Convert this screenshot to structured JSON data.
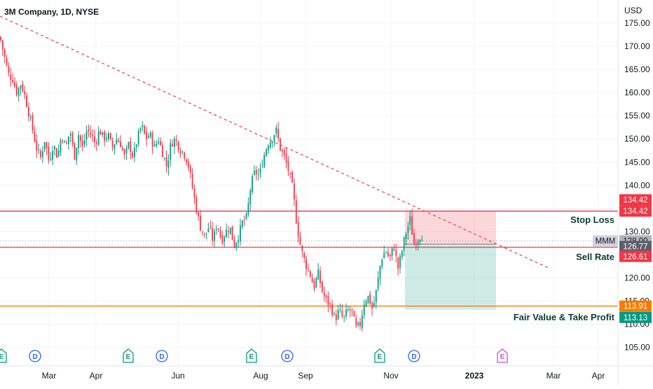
{
  "header": {
    "title": "3M Company, 1D, NYSE",
    "currency": "USD"
  },
  "chart_data": {
    "type": "candlestick",
    "symbol": "MMM",
    "ylim": [
      101,
      180
    ],
    "y_ticks": [
      105,
      110,
      115,
      120,
      125,
      130,
      135,
      140,
      145,
      150,
      155,
      160,
      165,
      170,
      175
    ],
    "y_tick_labels": [
      "105.00",
      "110.00",
      "115.00",
      "120.00",
      "125.00",
      "130.00",
      "135.00",
      "140.00",
      "145.00",
      "150.00",
      "155.00",
      "160.00",
      "165.00",
      "170.00",
      "175.00"
    ],
    "x_range": [
      0,
      880
    ],
    "x_ticks": [
      {
        "label": "Mar",
        "x": 70
      },
      {
        "label": "Apr",
        "x": 137
      },
      {
        "label": "Jun",
        "x": 254
      },
      {
        "label": "Aug",
        "x": 372
      },
      {
        "label": "Sep",
        "x": 436
      },
      {
        "label": "Nov",
        "x": 558
      },
      {
        "label": "2023",
        "x": 677,
        "bold": true
      },
      {
        "label": "Mar",
        "x": 790
      },
      {
        "label": "Apr",
        "x": 854
      }
    ],
    "anchors": [
      [
        0,
        172
      ],
      [
        6,
        168
      ],
      [
        12,
        164
      ],
      [
        18,
        163
      ],
      [
        24,
        160
      ],
      [
        30,
        162
      ],
      [
        36,
        159
      ],
      [
        42,
        155
      ],
      [
        48,
        151
      ],
      [
        52,
        148
      ],
      [
        58,
        146
      ],
      [
        64,
        150
      ],
      [
        70,
        145
      ],
      [
        76,
        149
      ],
      [
        82,
        146
      ],
      [
        88,
        151
      ],
      [
        94,
        148
      ],
      [
        100,
        152
      ],
      [
        106,
        146
      ],
      [
        112,
        151
      ],
      [
        118,
        148
      ],
      [
        124,
        152
      ],
      [
        130,
        151
      ],
      [
        136,
        149
      ],
      [
        142,
        152
      ],
      [
        148,
        150
      ],
      [
        154,
        151
      ],
      [
        160,
        148
      ],
      [
        166,
        150
      ],
      [
        172,
        149
      ],
      [
        178,
        146
      ],
      [
        184,
        149
      ],
      [
        190,
        146
      ],
      [
        196,
        150
      ],
      [
        202,
        153
      ],
      [
        208,
        150
      ],
      [
        214,
        151
      ],
      [
        220,
        148
      ],
      [
        226,
        150
      ],
      [
        232,
        147
      ],
      [
        238,
        144
      ],
      [
        244,
        149
      ],
      [
        250,
        150
      ],
      [
        256,
        148
      ],
      [
        262,
        147
      ],
      [
        268,
        145
      ],
      [
        274,
        140
      ],
      [
        280,
        135
      ],
      [
        286,
        131
      ],
      [
        292,
        129
      ],
      [
        298,
        131
      ],
      [
        304,
        128
      ],
      [
        310,
        132
      ],
      [
        316,
        128
      ],
      [
        322,
        130
      ],
      [
        328,
        131
      ],
      [
        334,
        127
      ],
      [
        340,
        129
      ],
      [
        346,
        132
      ],
      [
        352,
        133
      ],
      [
        358,
        140
      ],
      [
        364,
        143
      ],
      [
        370,
        142
      ],
      [
        376,
        146
      ],
      [
        382,
        149
      ],
      [
        388,
        150
      ],
      [
        394,
        152
      ],
      [
        400,
        148
      ],
      [
        406,
        146
      ],
      [
        412,
        143
      ],
      [
        418,
        139
      ],
      [
        424,
        131
      ],
      [
        430,
        126
      ],
      [
        436,
        123
      ],
      [
        442,
        121
      ],
      [
        448,
        118
      ],
      [
        454,
        121
      ],
      [
        460,
        117
      ],
      [
        466,
        115
      ],
      [
        472,
        114
      ],
      [
        478,
        111
      ],
      [
        484,
        113
      ],
      [
        490,
        111
      ],
      [
        496,
        113
      ],
      [
        502,
        113
      ],
      [
        508,
        109
      ],
      [
        514,
        110
      ],
      [
        520,
        115
      ],
      [
        526,
        116
      ],
      [
        532,
        113
      ],
      [
        538,
        118
      ],
      [
        544,
        124
      ],
      [
        550,
        126
      ],
      [
        556,
        124
      ],
      [
        562,
        127
      ],
      [
        568,
        122
      ],
      [
        574,
        126
      ],
      [
        578,
        129
      ],
      [
        582,
        131
      ],
      [
        586,
        133
      ],
      [
        590,
        127
      ],
      [
        594,
        128
      ],
      [
        598,
        129
      ],
      [
        604,
        129
      ]
    ],
    "trendline": {
      "x": [
        0,
        785
      ],
      "y": [
        176.5,
        122
      ]
    },
    "levels": [
      {
        "name": "Stop Loss",
        "value": 134.42,
        "color": "#f23645",
        "badge": "134.42",
        "label_y": 132.6
      },
      {
        "name": "Sell Rate",
        "value": 126.61,
        "color": "#f23645",
        "badge": "126.61",
        "label_y": 124.6
      },
      {
        "name": "Fair Value & Take Profit",
        "value": 113.91,
        "color": "#f57c00",
        "badge": "113.91",
        "label_y": 111.6
      }
    ],
    "last_price": {
      "value": 128.0,
      "label": "128.00",
      "symbol_label": "MMM"
    },
    "mid_price": {
      "value": 126.77,
      "label": "126.77"
    },
    "target_price": {
      "value": 113.13,
      "label": "113.13"
    },
    "position_box": {
      "x_start": 578,
      "x_end": 708,
      "stop": 134.42,
      "entry": 127.3,
      "target": 113.13
    },
    "events": [
      {
        "type": "E",
        "x": 2,
        "color": "#089981"
      },
      {
        "type": "D",
        "x": 50,
        "color": "#2962ff"
      },
      {
        "type": "E",
        "x": 183,
        "color": "#089981"
      },
      {
        "type": "D",
        "x": 231,
        "color": "#2962ff"
      },
      {
        "type": "E",
        "x": 359,
        "color": "#089981"
      },
      {
        "type": "D",
        "x": 410,
        "color": "#2962ff"
      },
      {
        "type": "E",
        "x": 542,
        "color": "#089981"
      },
      {
        "type": "D",
        "x": 591,
        "color": "#2962ff"
      },
      {
        "type": "E",
        "x": 717,
        "color": "#c156d6"
      }
    ],
    "colors": {
      "up": "#089981",
      "down": "#f23645",
      "axis_text": "#131722",
      "grid": "#f0f3fa"
    }
  }
}
